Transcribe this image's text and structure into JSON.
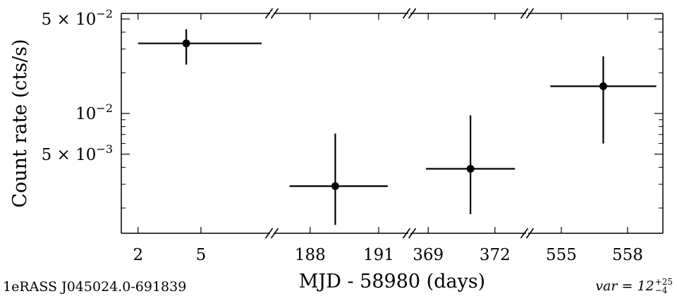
{
  "chart_data": {
    "type": "scatter",
    "subtype": "broken-x-axis light curve with x and y error bars",
    "xlabel": "MJD - 58980 (days)",
    "ylabel": "Count rate (cts/s)",
    "yscale": "log",
    "ylim": [
      0.0013,
      0.055
    ],
    "y_ticks": [
      {
        "value": 0.05,
        "mantissa": "5",
        "exponent": "−2"
      },
      {
        "value": 0.01,
        "mantissa": "",
        "exponent": "−2"
      },
      {
        "value": 0.005,
        "mantissa": "5",
        "exponent": "−3"
      }
    ],
    "grid": false,
    "legend": "none",
    "segments": [
      {
        "xlim": [
          1.2,
          8.3
        ],
        "ticks": [
          2,
          5
        ],
        "points": [
          {
            "x": 4.3,
            "xerr_low": 2.3,
            "xerr_high": 3.6,
            "y": 0.033,
            "yerr_low": 0.01,
            "yerr_high": 0.009
          }
        ]
      },
      {
        "xlim": [
          186.4,
          192.3
        ],
        "ticks": [
          188,
          191
        ],
        "points": [
          {
            "x": 189.1,
            "xerr_low": 2.0,
            "xerr_high": 2.3,
            "y": 0.0029,
            "yerr_low": 0.0014,
            "yerr_high": 0.0042
          }
        ]
      },
      {
        "xlim": [
          368.2,
          373.4
        ],
        "ticks": [
          369,
          372
        ],
        "points": [
          {
            "x": 370.9,
            "xerr_low": 2.0,
            "xerr_high": 2.0,
            "y": 0.0039,
            "yerr_low": 0.0021,
            "yerr_high": 0.0058
          }
        ]
      },
      {
        "xlim": [
          553.5,
          559.6
        ],
        "ticks": [
          555,
          558
        ],
        "points": [
          {
            "x": 556.9,
            "xerr_low": 2.4,
            "xerr_high": 2.4,
            "y": 0.0159,
            "yerr_low": 0.0099,
            "yerr_high": 0.0106
          }
        ]
      }
    ]
  },
  "footer": {
    "source_name": "1eRASS J045024.0-691839",
    "var_label": "var",
    "var_value": "12",
    "var_upper": "+25",
    "var_lower": "−4"
  }
}
